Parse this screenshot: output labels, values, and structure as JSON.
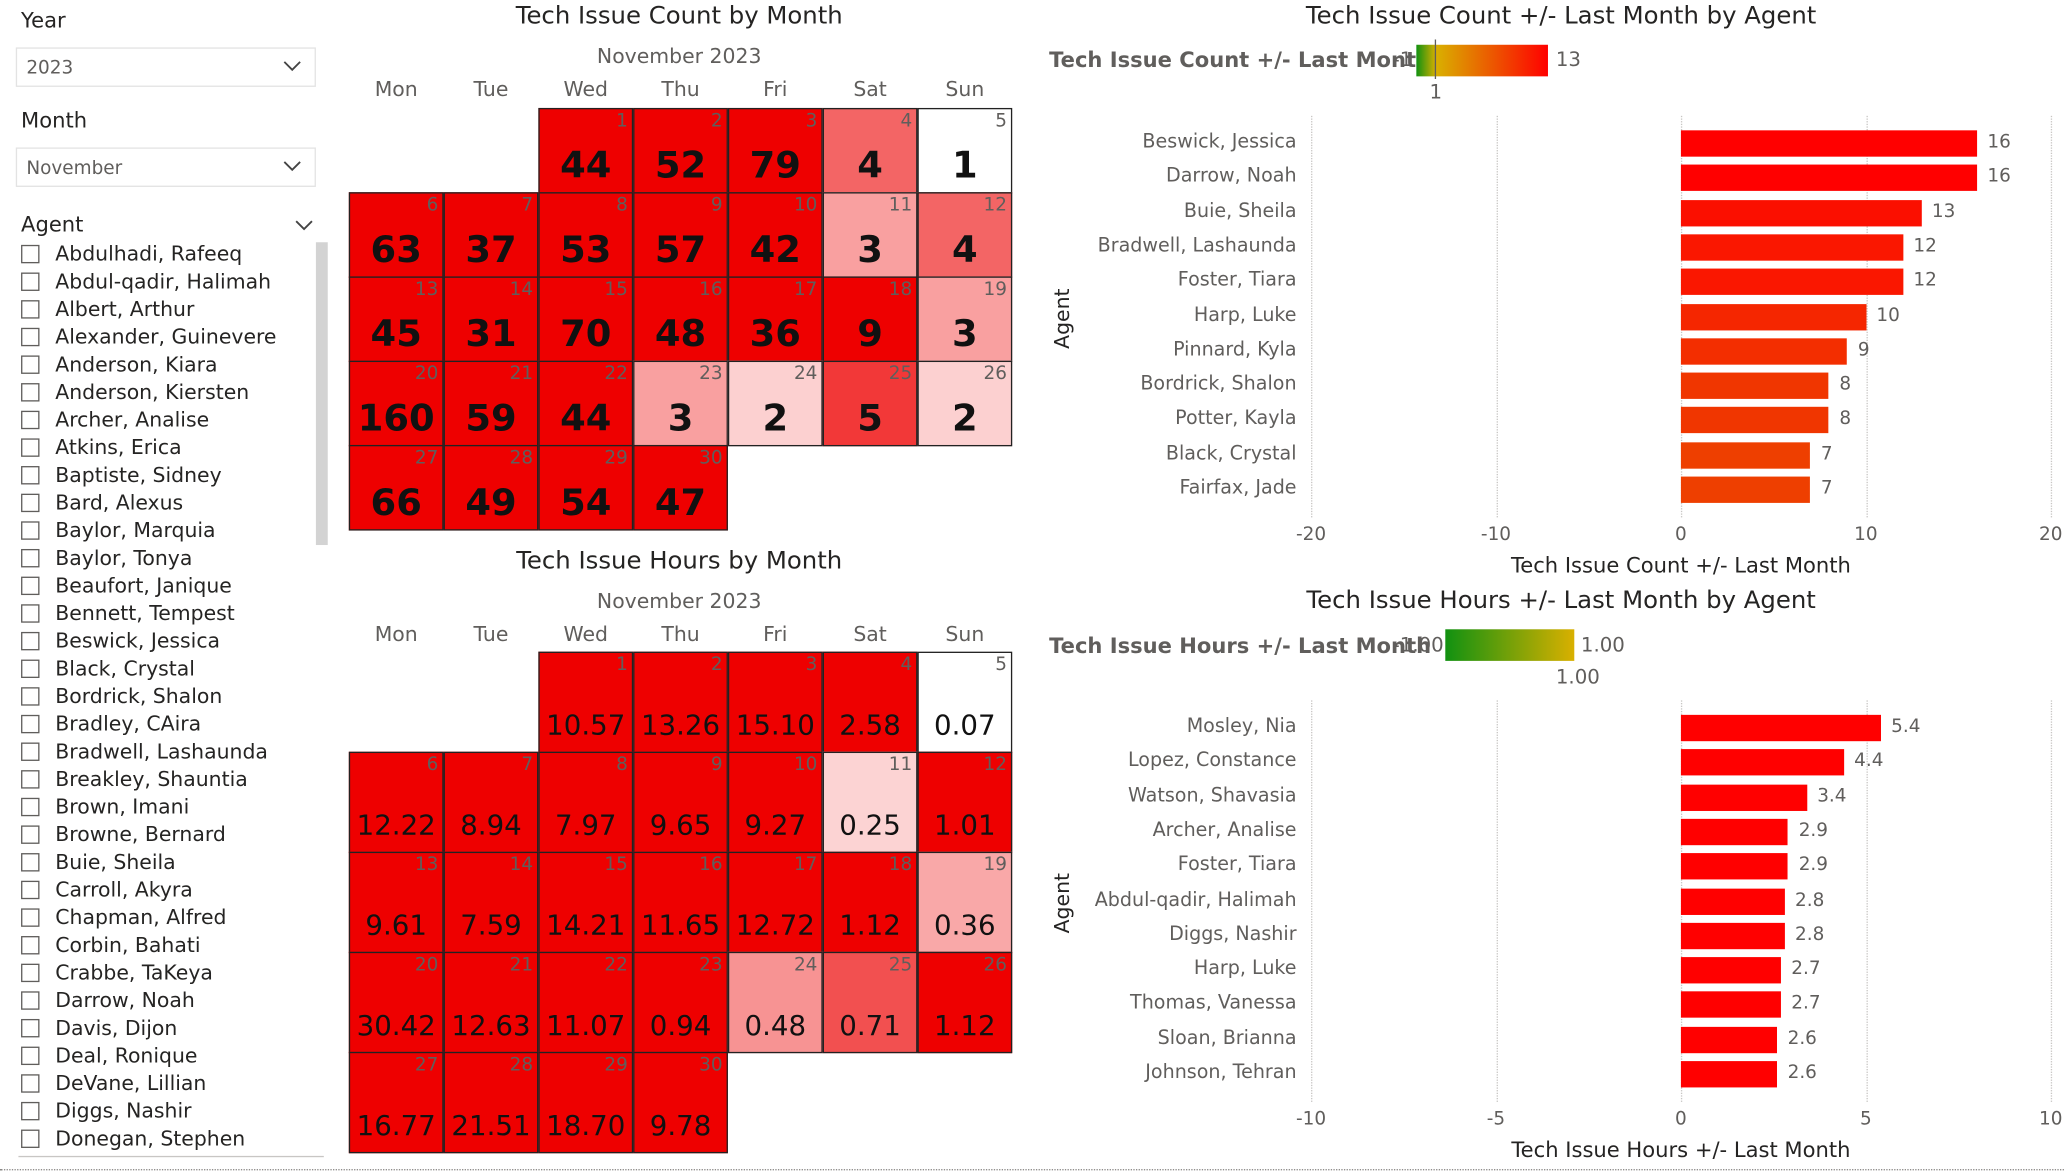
{
  "slicers": {
    "year": {
      "title": "Year",
      "value": "2023"
    },
    "month": {
      "title": "Month",
      "value": "November"
    },
    "agent": {
      "title": "Agent",
      "items": [
        "Abdulhadi, Rafeeq",
        "Abdul-qadir, Halimah",
        "Albert, Arthur",
        "Alexander, Guinevere",
        "Anderson, Kiara",
        "Anderson, Kiersten",
        "Archer, Analise",
        "Atkins, Erica",
        "Baptiste, Sidney",
        "Bard, Alexus",
        "Baylor, Marquia",
        "Baylor, Tonya",
        "Beaufort, Janique",
        "Bennett, Tempest",
        "Beswick, Jessica",
        "Black, Crystal",
        "Bordrick, Shalon",
        "Bradley, CAira",
        "Bradwell, Lashaunda",
        "Breakley, Shauntia",
        "Brown, Imani",
        "Browne, Bernard",
        "Buie, Sheila",
        "Carroll, Akyra",
        "Chapman, Alfred",
        "Corbin, Bahati",
        "Crabbe, TaKeya",
        "Darrow, Noah",
        "Davis, Dijon",
        "Deal, Ronique",
        "DeVane, Lillian",
        "Diggs, Nashir",
        "Donegan, Stephen"
      ]
    }
  },
  "calendar_count": {
    "title": "Tech Issue Count by Month",
    "month_label": "November 2023",
    "weekdays": [
      "Mon",
      "Tue",
      "Wed",
      "Thu",
      "Fri",
      "Sat",
      "Sun"
    ],
    "start_weekday_index": 2,
    "days": [
      {
        "day": 1,
        "value": "44",
        "shade": "#ee0000"
      },
      {
        "day": 2,
        "value": "52",
        "shade": "#ee0000"
      },
      {
        "day": 3,
        "value": "79",
        "shade": "#ee0000"
      },
      {
        "day": 4,
        "value": "4",
        "shade": "#f36565"
      },
      {
        "day": 5,
        "value": "1",
        "shade": "#ffffff"
      },
      {
        "day": 6,
        "value": "63",
        "shade": "#ee0000"
      },
      {
        "day": 7,
        "value": "37",
        "shade": "#ee0000"
      },
      {
        "day": 8,
        "value": "53",
        "shade": "#ee0000"
      },
      {
        "day": 9,
        "value": "57",
        "shade": "#ee0000"
      },
      {
        "day": 10,
        "value": "42",
        "shade": "#ee0000"
      },
      {
        "day": 11,
        "value": "3",
        "shade": "#f9a0a0"
      },
      {
        "day": 12,
        "value": "4",
        "shade": "#f36565"
      },
      {
        "day": 13,
        "value": "45",
        "shade": "#ee0000"
      },
      {
        "day": 14,
        "value": "31",
        "shade": "#ee0000"
      },
      {
        "day": 15,
        "value": "70",
        "shade": "#ee0000"
      },
      {
        "day": 16,
        "value": "48",
        "shade": "#ee0000"
      },
      {
        "day": 17,
        "value": "36",
        "shade": "#ee0000"
      },
      {
        "day": 18,
        "value": "9",
        "shade": "#ee0000"
      },
      {
        "day": 19,
        "value": "3",
        "shade": "#f9a0a0"
      },
      {
        "day": 20,
        "value": "160",
        "shade": "#ee0000"
      },
      {
        "day": 21,
        "value": "59",
        "shade": "#ee0000"
      },
      {
        "day": 22,
        "value": "44",
        "shade": "#ee0000"
      },
      {
        "day": 23,
        "value": "3",
        "shade": "#f9a0a0"
      },
      {
        "day": 24,
        "value": "2",
        "shade": "#fcd0d0"
      },
      {
        "day": 25,
        "value": "5",
        "shade": "#f23838"
      },
      {
        "day": 26,
        "value": "2",
        "shade": "#fcd0d0"
      },
      {
        "day": 27,
        "value": "66",
        "shade": "#ee0000"
      },
      {
        "day": 28,
        "value": "49",
        "shade": "#ee0000"
      },
      {
        "day": 29,
        "value": "54",
        "shade": "#ee0000"
      },
      {
        "day": 30,
        "value": "47",
        "shade": "#ee0000"
      }
    ]
  },
  "calendar_hours": {
    "title": "Tech Issue Hours by Month",
    "month_label": "November 2023",
    "weekdays": [
      "Mon",
      "Tue",
      "Wed",
      "Thu",
      "Fri",
      "Sat",
      "Sun"
    ],
    "start_weekday_index": 2,
    "days": [
      {
        "day": 1,
        "value": "10.57",
        "shade": "#ee0000"
      },
      {
        "day": 2,
        "value": "13.26",
        "shade": "#ee0000"
      },
      {
        "day": 3,
        "value": "15.10",
        "shade": "#ee0000"
      },
      {
        "day": 4,
        "value": "2.58",
        "shade": "#ee0000"
      },
      {
        "day": 5,
        "value": "0.07",
        "shade": "#ffffff"
      },
      {
        "day": 6,
        "value": "12.22",
        "shade": "#ee0000"
      },
      {
        "day": 7,
        "value": "8.94",
        "shade": "#ee0000"
      },
      {
        "day": 8,
        "value": "7.97",
        "shade": "#ee0000"
      },
      {
        "day": 9,
        "value": "9.65",
        "shade": "#ee0000"
      },
      {
        "day": 10,
        "value": "9.27",
        "shade": "#ee0000"
      },
      {
        "day": 11,
        "value": "0.25",
        "shade": "#fcd3d3"
      },
      {
        "day": 12,
        "value": "1.01",
        "shade": "#ee0000"
      },
      {
        "day": 13,
        "value": "9.61",
        "shade": "#ee0000"
      },
      {
        "day": 14,
        "value": "7.59",
        "shade": "#ee0000"
      },
      {
        "day": 15,
        "value": "14.21",
        "shade": "#ee0000"
      },
      {
        "day": 16,
        "value": "11.65",
        "shade": "#ee0000"
      },
      {
        "day": 17,
        "value": "12.72",
        "shade": "#ee0000"
      },
      {
        "day": 18,
        "value": "1.12",
        "shade": "#ee0000"
      },
      {
        "day": 19,
        "value": "0.36",
        "shade": "#f9a8a8"
      },
      {
        "day": 20,
        "value": "30.42",
        "shade": "#ee0000"
      },
      {
        "day": 21,
        "value": "12.63",
        "shade": "#ee0000"
      },
      {
        "day": 22,
        "value": "11.07",
        "shade": "#ee0000"
      },
      {
        "day": 23,
        "value": "0.94",
        "shade": "#ee0000"
      },
      {
        "day": 24,
        "value": "0.48",
        "shade": "#f79393"
      },
      {
        "day": 25,
        "value": "0.71",
        "shade": "#f25050"
      },
      {
        "day": 26,
        "value": "1.12",
        "shade": "#ee0000"
      },
      {
        "day": 27,
        "value": "16.77",
        "shade": "#ee0000"
      },
      {
        "day": 28,
        "value": "21.51",
        "shade": "#ee0000"
      },
      {
        "day": 29,
        "value": "18.70",
        "shade": "#ee0000"
      },
      {
        "day": 30,
        "value": "9.78",
        "shade": "#ee0000"
      }
    ]
  },
  "chart_data": [
    {
      "type": "bar",
      "orientation": "horizontal",
      "title": "Tech Issue Count +/- Last Month by Agent",
      "legend": {
        "label": "Tech Issue Count +/- Last Month",
        "min_label": "-1",
        "max_label": "13",
        "mid_label": "1",
        "colors": [
          "#119111",
          "#d9b000",
          "#ff0000"
        ]
      },
      "categories": [
        "Beswick, Jessica",
        "Darrow, Noah",
        "Buie, Sheila",
        "Bradwell, Lashaunda",
        "Foster, Tiara",
        "Harp, Luke",
        "Pinnard, Kyla",
        "Bordrick, Shalon",
        "Potter, Kayla",
        "Black, Crystal",
        "Fairfax, Jade"
      ],
      "values": [
        16,
        16,
        13,
        12,
        12,
        10,
        9,
        8,
        8,
        7,
        7
      ],
      "bar_colors": [
        "#ff0000",
        "#ff0000",
        "#fb0f00",
        "#fa1700",
        "#fa1700",
        "#f52600",
        "#f32e00",
        "#f03600",
        "#f03600",
        "#ee3f00",
        "#ee3f00"
      ],
      "xlabel": "Tech Issue Count +/- Last Month",
      "ylabel": "Agent",
      "xlim": [
        -20,
        20
      ],
      "xticks": [
        -20,
        -10,
        0,
        10,
        20
      ]
    },
    {
      "type": "bar",
      "orientation": "horizontal",
      "title": "Tech Issue Hours +/- Last Month by Agent",
      "legend": {
        "label": "Tech Issue Hours +/- Last Month",
        "min_label": "-1.00",
        "max_label": "1.00",
        "mid_label": "1.00",
        "colors": [
          "#119111",
          "#d9b000"
        ]
      },
      "categories": [
        "Mosley, Nia",
        "Lopez, Constance",
        "Watson, Shavasia",
        "Archer, Analise",
        "Foster, Tiara",
        "Abdul-qadir, Halimah",
        "Diggs, Nashir",
        "Harp, Luke",
        "Thomas, Vanessa",
        "Sloan, Brianna",
        "Johnson, Tehran"
      ],
      "values": [
        5.4,
        4.4,
        3.4,
        2.9,
        2.9,
        2.8,
        2.8,
        2.7,
        2.7,
        2.6,
        2.6
      ],
      "value_labels": [
        "5.4",
        "4.4",
        "3.4",
        "2.9",
        "2.9",
        "2.8",
        "2.8",
        "2.7",
        "2.7",
        "2.6",
        "2.6"
      ],
      "bar_colors": [
        "#ff0000",
        "#ff0000",
        "#ff0000",
        "#ff0000",
        "#ff0000",
        "#ff0000",
        "#ff0000",
        "#ff0000",
        "#ff0000",
        "#ff0000",
        "#ff0000"
      ],
      "xlabel": "Tech Issue Hours +/- Last Month",
      "ylabel": "Agent",
      "xlim": [
        -10,
        10
      ],
      "xticks": [
        -10,
        -5,
        0,
        5,
        10
      ]
    }
  ]
}
